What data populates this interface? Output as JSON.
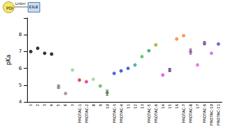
{
  "chart_data": {
    "type": "scatter",
    "y_label": "pKa",
    "annotations": [
      "POI",
      "Linker",
      "E3LB"
    ],
    "categories": [
      "1",
      "2",
      "3",
      "4",
      "5",
      "6",
      "7",
      "PROTAC-1",
      "PROTAC-2",
      "8",
      "9",
      "10",
      "PROTAC-3",
      "PROTAC-4",
      "11",
      "12",
      "13",
      "PROTAC-5",
      "PROTAC-6",
      "14",
      "15",
      "16",
      "PROTAC-7",
      "PROTAC-8",
      "17",
      "PROTAC-9",
      "PROTAC-10",
      "PROTAC-11"
    ],
    "values": [
      7.0,
      7.2,
      6.9,
      6.85,
      4.9,
      4.5,
      5.9,
      5.3,
      5.2,
      5.35,
      4.95,
      4.55,
      5.7,
      5.85,
      6.0,
      6.2,
      6.7,
      7.05,
      7.4,
      5.6,
      5.9,
      7.75,
      7.95,
      7.0,
      6.2,
      7.5,
      6.9,
      7.45
    ],
    "errors": [
      null,
      null,
      null,
      null,
      0.1,
      null,
      null,
      null,
      null,
      null,
      null,
      0.15,
      null,
      null,
      null,
      null,
      null,
      null,
      null,
      null,
      0.1,
      null,
      null,
      0.15,
      null,
      0.1,
      null,
      null
    ],
    "colors": [
      "#000000",
      "#000000",
      "#000000",
      "#000000",
      "#8a8a8a",
      "#8a8a8a",
      "#8fd48f",
      "#e8202a",
      "#e0208e",
      "#8fd48f",
      "#4db84d",
      "#2e8b2e",
      "#2040e0",
      "#2040e0",
      "#2040e0",
      "#20a0a0",
      "#40c040",
      "#20a050",
      "#a0a020",
      "#e040e0",
      "#8040c0",
      "#ff8020",
      "#ff8020",
      "#a040c0",
      "#e060e0",
      "#8040c0",
      "#c060e0",
      "#6040c0"
    ],
    "marker": "circle",
    "ylim": [
      4,
      9
    ],
    "yticks": [
      4,
      5,
      6,
      7,
      8
    ],
    "grid": false
  }
}
